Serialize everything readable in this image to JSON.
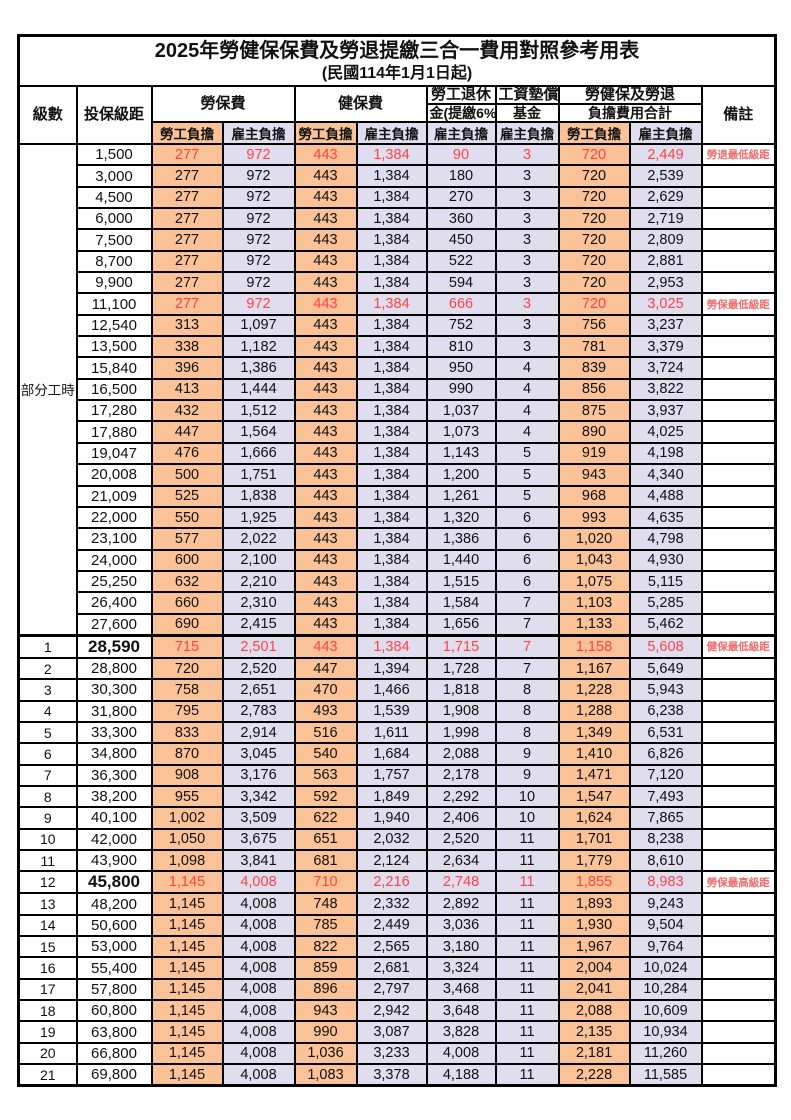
{
  "table": {
    "title": "2025年勞健保保費及勞退提繳三合一費用對照參考用表",
    "subtitle": "(民國114年1月1日起)",
    "columns": {
      "level": "級數",
      "bracket": "投保級距",
      "labor_insurance": "勞保費",
      "health_insurance": "健保費",
      "pension_line1": "勞工退休",
      "pension_line2": "金(提繳6%)",
      "wage_fund_line1": "工資墊償",
      "wage_fund_line2": "基金",
      "total_line1": "勞健保及勞退",
      "total_line2": "負擔費用合計",
      "remark": "備註",
      "employee": "勞工負擔",
      "employer": "雇主負擔"
    },
    "part_time_label": "部分工時",
    "part_time_span": 23,
    "colors": {
      "employee_bg": "#FAC296",
      "employer_bg": "#DFDDEE",
      "highlight_text": "#FF4242",
      "remark_text": "#F36B6B",
      "border": "#000000",
      "background": "#FFFFFF"
    },
    "row_fields": [
      "level",
      "bracket",
      "labor_employee",
      "labor_employer",
      "health_employee",
      "health_employer",
      "pension_employer",
      "fund_employer",
      "total_employee",
      "total_employer",
      "remark"
    ],
    "rows": [
      [
        "",
        "1,500",
        "277",
        "972",
        "443",
        "1,384",
        "90",
        "3",
        "720",
        "2,449",
        "勞退最低級距"
      ],
      [
        "",
        "3,000",
        "277",
        "972",
        "443",
        "1,384",
        "180",
        "3",
        "720",
        "2,539",
        ""
      ],
      [
        "",
        "4,500",
        "277",
        "972",
        "443",
        "1,384",
        "270",
        "3",
        "720",
        "2,629",
        ""
      ],
      [
        "",
        "6,000",
        "277",
        "972",
        "443",
        "1,384",
        "360",
        "3",
        "720",
        "2,719",
        ""
      ],
      [
        "",
        "7,500",
        "277",
        "972",
        "443",
        "1,384",
        "450",
        "3",
        "720",
        "2,809",
        ""
      ],
      [
        "",
        "8,700",
        "277",
        "972",
        "443",
        "1,384",
        "522",
        "3",
        "720",
        "2,881",
        ""
      ],
      [
        "",
        "9,900",
        "277",
        "972",
        "443",
        "1,384",
        "594",
        "3",
        "720",
        "2,953",
        ""
      ],
      [
        "",
        "11,100",
        "277",
        "972",
        "443",
        "1,384",
        "666",
        "3",
        "720",
        "3,025",
        "勞保最低級距"
      ],
      [
        "",
        "12,540",
        "313",
        "1,097",
        "443",
        "1,384",
        "752",
        "3",
        "756",
        "3,237",
        ""
      ],
      [
        "",
        "13,500",
        "338",
        "1,182",
        "443",
        "1,384",
        "810",
        "3",
        "781",
        "3,379",
        ""
      ],
      [
        "",
        "15,840",
        "396",
        "1,386",
        "443",
        "1,384",
        "950",
        "4",
        "839",
        "3,724",
        ""
      ],
      [
        "",
        "16,500",
        "413",
        "1,444",
        "443",
        "1,384",
        "990",
        "4",
        "856",
        "3,822",
        ""
      ],
      [
        "",
        "17,280",
        "432",
        "1,512",
        "443",
        "1,384",
        "1,037",
        "4",
        "875",
        "3,937",
        ""
      ],
      [
        "",
        "17,880",
        "447",
        "1,564",
        "443",
        "1,384",
        "1,073",
        "4",
        "890",
        "4,025",
        ""
      ],
      [
        "",
        "19,047",
        "476",
        "1,666",
        "443",
        "1,384",
        "1,143",
        "5",
        "919",
        "4,198",
        ""
      ],
      [
        "",
        "20,008",
        "500",
        "1,751",
        "443",
        "1,384",
        "1,200",
        "5",
        "943",
        "4,340",
        ""
      ],
      [
        "",
        "21,009",
        "525",
        "1,838",
        "443",
        "1,384",
        "1,261",
        "5",
        "968",
        "4,488",
        ""
      ],
      [
        "",
        "22,000",
        "550",
        "1,925",
        "443",
        "1,384",
        "1,320",
        "6",
        "993",
        "4,635",
        ""
      ],
      [
        "",
        "23,100",
        "577",
        "2,022",
        "443",
        "1,384",
        "1,386",
        "6",
        "1,020",
        "4,798",
        ""
      ],
      [
        "",
        "24,000",
        "600",
        "2,100",
        "443",
        "1,384",
        "1,440",
        "6",
        "1,043",
        "4,930",
        ""
      ],
      [
        "",
        "25,250",
        "632",
        "2,210",
        "443",
        "1,384",
        "1,515",
        "6",
        "1,075",
        "5,115",
        ""
      ],
      [
        "",
        "26,400",
        "660",
        "2,310",
        "443",
        "1,384",
        "1,584",
        "7",
        "1,103",
        "5,285",
        ""
      ],
      [
        "",
        "27,600",
        "690",
        "2,415",
        "443",
        "1,384",
        "1,656",
        "7",
        "1,133",
        "5,462",
        ""
      ],
      [
        "1",
        "28,590",
        "715",
        "2,501",
        "443",
        "1,384",
        "1,715",
        "7",
        "1,158",
        "5,608",
        "健保最低級距"
      ],
      [
        "2",
        "28,800",
        "720",
        "2,520",
        "447",
        "1,394",
        "1,728",
        "7",
        "1,167",
        "5,649",
        ""
      ],
      [
        "3",
        "30,300",
        "758",
        "2,651",
        "470",
        "1,466",
        "1,818",
        "8",
        "1,228",
        "5,943",
        ""
      ],
      [
        "4",
        "31,800",
        "795",
        "2,783",
        "493",
        "1,539",
        "1,908",
        "8",
        "1,288",
        "6,238",
        ""
      ],
      [
        "5",
        "33,300",
        "833",
        "2,914",
        "516",
        "1,611",
        "1,998",
        "8",
        "1,349",
        "6,531",
        ""
      ],
      [
        "6",
        "34,800",
        "870",
        "3,045",
        "540",
        "1,684",
        "2,088",
        "9",
        "1,410",
        "6,826",
        ""
      ],
      [
        "7",
        "36,300",
        "908",
        "3,176",
        "563",
        "1,757",
        "2,178",
        "9",
        "1,471",
        "7,120",
        ""
      ],
      [
        "8",
        "38,200",
        "955",
        "3,342",
        "592",
        "1,849",
        "2,292",
        "10",
        "1,547",
        "7,493",
        ""
      ],
      [
        "9",
        "40,100",
        "1,002",
        "3,509",
        "622",
        "1,940",
        "2,406",
        "10",
        "1,624",
        "7,865",
        ""
      ],
      [
        "10",
        "42,000",
        "1,050",
        "3,675",
        "651",
        "2,032",
        "2,520",
        "11",
        "1,701",
        "8,238",
        ""
      ],
      [
        "11",
        "43,900",
        "1,098",
        "3,841",
        "681",
        "2,124",
        "2,634",
        "11",
        "1,779",
        "8,610",
        ""
      ],
      [
        "12",
        "45,800",
        "1,145",
        "4,008",
        "710",
        "2,216",
        "2,748",
        "11",
        "1,855",
        "8,983",
        "勞保最高級距"
      ],
      [
        "13",
        "48,200",
        "1,145",
        "4,008",
        "748",
        "2,332",
        "2,892",
        "11",
        "1,893",
        "9,243",
        ""
      ],
      [
        "14",
        "50,600",
        "1,145",
        "4,008",
        "785",
        "2,449",
        "3,036",
        "11",
        "1,930",
        "9,504",
        ""
      ],
      [
        "15",
        "53,000",
        "1,145",
        "4,008",
        "822",
        "2,565",
        "3,180",
        "11",
        "1,967",
        "9,764",
        ""
      ],
      [
        "16",
        "55,400",
        "1,145",
        "4,008",
        "859",
        "2,681",
        "3,324",
        "11",
        "2,004",
        "10,024",
        ""
      ],
      [
        "17",
        "57,800",
        "1,145",
        "4,008",
        "896",
        "2,797",
        "3,468",
        "11",
        "2,041",
        "10,284",
        ""
      ],
      [
        "18",
        "60,800",
        "1,145",
        "4,008",
        "943",
        "2,942",
        "3,648",
        "11",
        "2,088",
        "10,609",
        ""
      ],
      [
        "19",
        "63,800",
        "1,145",
        "4,008",
        "990",
        "3,087",
        "3,828",
        "11",
        "2,135",
        "10,934",
        ""
      ],
      [
        "20",
        "66,800",
        "1,145",
        "4,008",
        "1,036",
        "3,233",
        "4,008",
        "11",
        "2,181",
        "11,260",
        ""
      ],
      [
        "21",
        "69,800",
        "1,145",
        "4,008",
        "1,083",
        "3,378",
        "4,188",
        "11",
        "2,228",
        "11,585",
        ""
      ]
    ],
    "highlight_rows": [
      0,
      7,
      23,
      34
    ],
    "bold_bracket_rows": [
      23,
      34
    ],
    "section_break_rows": [
      23
    ]
  }
}
